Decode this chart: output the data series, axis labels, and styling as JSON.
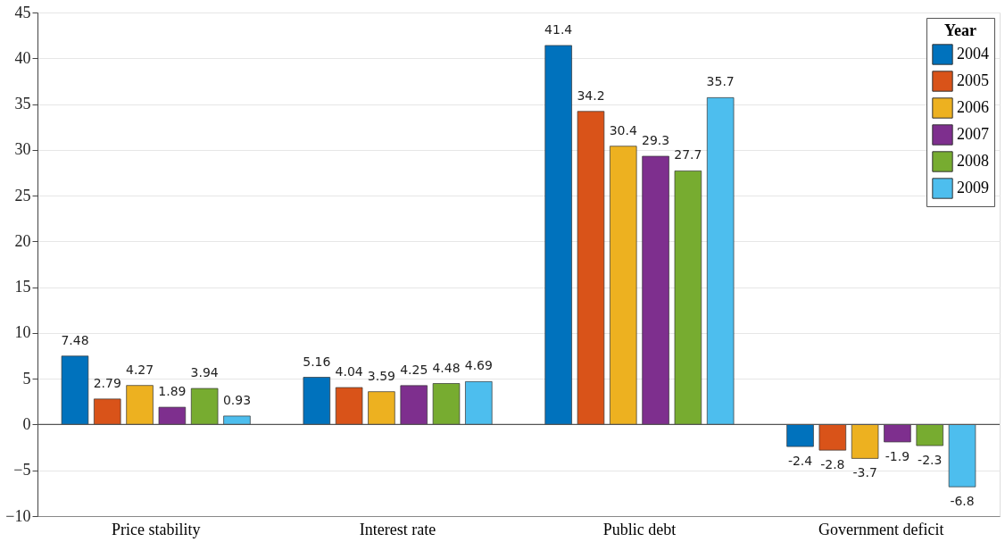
{
  "chart_data": {
    "type": "bar",
    "categories": [
      "Price stability",
      "Interest rate",
      "Public debt",
      "Government deficit"
    ],
    "series": [
      {
        "name": "2004",
        "color": "#0072bd",
        "values": [
          7.48,
          5.16,
          41.4,
          -2.4
        ]
      },
      {
        "name": "2005",
        "color": "#d95319",
        "values": [
          2.79,
          4.04,
          34.2,
          -2.8
        ]
      },
      {
        "name": "2006",
        "color": "#edb120",
        "values": [
          4.27,
          3.59,
          30.4,
          -3.7
        ]
      },
      {
        "name": "2007",
        "color": "#7e2f8e",
        "values": [
          1.89,
          4.25,
          29.3,
          -1.9
        ]
      },
      {
        "name": "2008",
        "color": "#77ac30",
        "values": [
          3.94,
          4.48,
          27.7,
          -2.3
        ]
      },
      {
        "name": "2009",
        "color": "#4dbeee",
        "values": [
          0.93,
          4.69,
          35.7,
          -6.8
        ]
      }
    ],
    "legend_title": "Year",
    "legend": "top right",
    "ylim": [
      -10,
      45
    ],
    "yticks": [
      -10,
      -5,
      0,
      5,
      10,
      15,
      20,
      25,
      30,
      35,
      40,
      45
    ],
    "grid": "y",
    "data_labels": true,
    "ref_lines": [
      {
        "axis": "y",
        "value": 0
      }
    ]
  }
}
